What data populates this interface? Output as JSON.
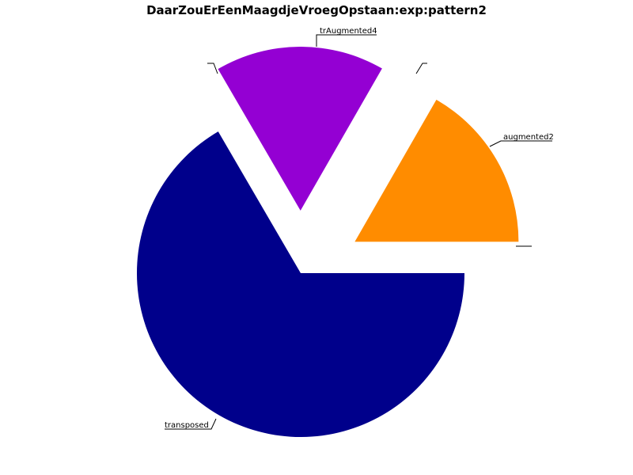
{
  "chart_data": {
    "type": "pie",
    "title": "DaarZouErEenMaagdjeVroegOpstaan:exp:pattern2",
    "slices": [
      {
        "label": "trAugmented4",
        "value": 16.7,
        "color": "#9400D3",
        "exploded": true
      },
      {
        "label": "augmented2",
        "value": 16.7,
        "color": "#FF8C00",
        "exploded": true
      },
      {
        "label": "",
        "value": 0,
        "exploded": true
      },
      {
        "label": "transposed",
        "value": 66.6,
        "color": "#00008B",
        "exploded": false
      },
      {
        "label": "",
        "value": 0,
        "exploded": true
      }
    ]
  }
}
